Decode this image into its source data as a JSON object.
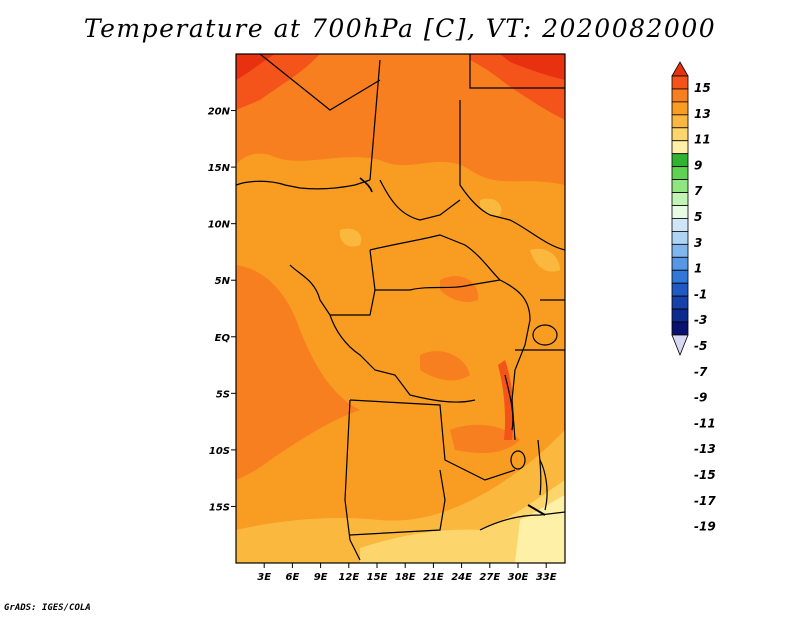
{
  "title": "Temperature at 700hPa [C], VT: 2020082000",
  "credit": "GrADS: IGES/COLA",
  "map": {
    "lon_labels": [
      "3E",
      "6E",
      "9E",
      "12E",
      "15E",
      "18E",
      "21E",
      "24E",
      "27E",
      "30E",
      "33E"
    ],
    "lon_values": [
      3,
      6,
      9,
      12,
      15,
      18,
      21,
      24,
      27,
      30,
      33
    ],
    "lat_labels": [
      "20N",
      "15N",
      "10N",
      "5N",
      "EQ",
      "5S",
      "10S",
      "15S"
    ],
    "lat_values": [
      20,
      15,
      10,
      5,
      0,
      -5,
      -10,
      -15
    ],
    "lon_range": [
      0,
      35
    ],
    "lat_range": [
      -20,
      25
    ],
    "field_range_c": [
      7,
      15
    ]
  },
  "colorbar": {
    "labels": [
      "15",
      "13",
      "11",
      "9",
      "7",
      "5",
      "3",
      "1",
      "-1",
      "-3",
      "-5",
      "-7",
      "-9",
      "-11",
      "-13",
      "-15",
      "-17",
      "-19"
    ],
    "colors": [
      "#e8320f",
      "#f4541a",
      "#f77f1f",
      "#f99c22",
      "#fbb83e",
      "#fcd66c",
      "#fff0a8",
      "#31b233",
      "#5fd251",
      "#90e67e",
      "#c2f4b5",
      "#e6fae6",
      "#cfe6f8",
      "#aed3f4",
      "#7fb6ee",
      "#5697e6",
      "#3178d8",
      "#1f5ac2",
      "#1541a8",
      "#0c2b8e",
      "#09126e",
      "#d8d8f4"
    ]
  }
}
